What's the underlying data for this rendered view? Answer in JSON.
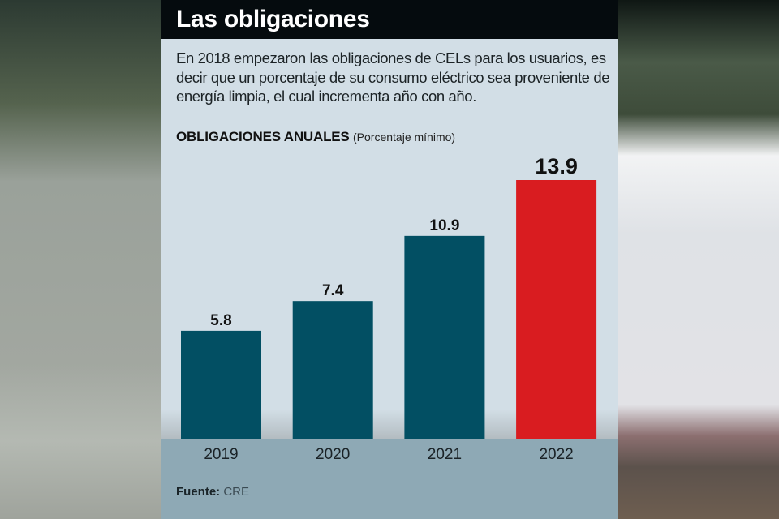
{
  "header": {
    "title": "Las obligaciones"
  },
  "description": "En 2018 empezaron las obligaciones de CELs para los usuarios, es decir que un porcentaje de su consumo eléctrico sea proveniente de energía limpia, el cual incrementa año con año.",
  "subtitle": {
    "bold": "OBLIGACIONES ANUALES",
    "normal": "(Porcentaje mínimo)"
  },
  "source": {
    "label": "Fuente:",
    "value": "CRE"
  },
  "colors": {
    "bar_default": "#024f63",
    "bar_highlight": "#d91c20",
    "header_bg": "#050b0e"
  },
  "chart_data": {
    "type": "bar",
    "title": "OBLIGACIONES ANUALES",
    "subtitle": "(Porcentaje mínimo)",
    "xlabel": "",
    "ylabel": "",
    "categories": [
      "2019",
      "2020",
      "2021",
      "2022"
    ],
    "values": [
      5.8,
      7.4,
      10.9,
      13.9
    ],
    "value_labels": [
      "5.8",
      "7.4",
      "10.9",
      "13.9"
    ],
    "highlight_index": 3,
    "ylim": [
      0,
      13.9
    ],
    "grid": false,
    "legend": "none"
  }
}
